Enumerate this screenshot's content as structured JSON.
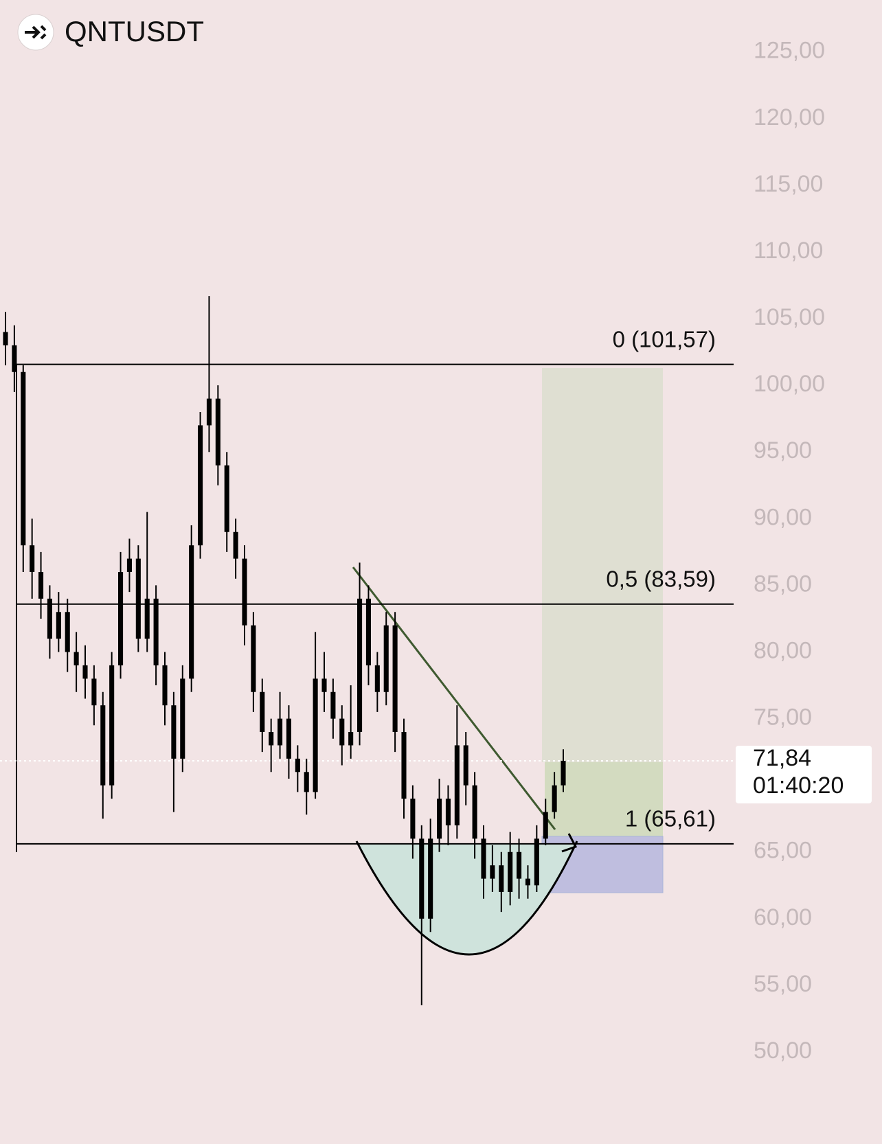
{
  "chart_data": {
    "type": "candlestick",
    "title": "QNTUSDT",
    "color": "#000000",
    "open": [
      104,
      103,
      101,
      88,
      86,
      84,
      81,
      83,
      80,
      79,
      78,
      76,
      70,
      79,
      86,
      87,
      81,
      84,
      79,
      76,
      72,
      78,
      88,
      97,
      99,
      94,
      89,
      87,
      82,
      77,
      74,
      73,
      75,
      72,
      71,
      69.5,
      78,
      77,
      75,
      73,
      74,
      84,
      79,
      77,
      82,
      74,
      69,
      66,
      60,
      66,
      69,
      67,
      73,
      70,
      66,
      63,
      64,
      62,
      65,
      63,
      62.5,
      66,
      68,
      70
    ],
    "high": [
      105.5,
      104.5,
      101.5,
      90,
      87.5,
      85,
      84.5,
      84,
      81.5,
      80.5,
      79,
      77,
      80,
      87.5,
      88.5,
      88,
      90.5,
      85,
      80,
      77,
      79,
      89.5,
      98,
      106.7,
      100,
      95,
      90,
      88,
      83,
      78,
      75,
      77,
      76,
      73,
      72,
      81.5,
      80,
      78,
      76,
      77.5,
      86.7,
      85,
      80,
      83,
      83,
      75,
      70,
      67,
      67.5,
      70.5,
      70,
      76,
      74,
      71,
      67,
      65.5,
      65,
      66.5,
      66,
      64,
      67,
      69,
      71,
      72.7
    ],
    "low": [
      101.5,
      99.5,
      86,
      84,
      82.5,
      79.5,
      80,
      78.5,
      77,
      76.5,
      74.5,
      67.5,
      69,
      78,
      84.5,
      80,
      80,
      77.5,
      74.5,
      68,
      71,
      77,
      87,
      95,
      92.5,
      87.5,
      85.5,
      80.5,
      75.5,
      72.5,
      71,
      72,
      70.5,
      69.5,
      67.8,
      69,
      75.5,
      73.5,
      71.5,
      72,
      73,
      77.5,
      75.5,
      76,
      72.5,
      67.5,
      64.5,
      53.5,
      59,
      65,
      65.5,
      66,
      68.5,
      64.5,
      61.5,
      62,
      60.5,
      61,
      61.5,
      61.5,
      62,
      65.5,
      67.5,
      69.5
    ],
    "close": [
      103,
      101,
      88,
      86,
      84,
      81,
      83,
      80,
      79,
      78,
      76,
      70,
      79,
      86,
      87,
      81,
      84,
      79,
      76,
      72,
      78,
      88,
      97,
      99,
      94,
      89,
      87,
      82,
      77,
      74,
      73,
      75,
      72,
      71,
      69.5,
      78,
      77,
      75,
      73,
      74,
      84,
      79,
      77,
      82,
      74,
      69,
      66,
      60,
      66,
      69,
      67,
      73,
      70,
      66,
      63,
      64,
      62,
      65,
      63,
      62.5,
      66,
      68,
      70,
      71.84
    ],
    "ylim": [
      43.1,
      128.9
    ],
    "yticks": [
      {
        "value": 50,
        "label": "50,00"
      },
      {
        "value": 55,
        "label": "55,00"
      },
      {
        "value": 60,
        "label": "60,00"
      },
      {
        "value": 65,
        "label": "65,00"
      },
      {
        "value": 70,
        "label": "70,00"
      },
      {
        "value": 75,
        "label": "75,00"
      },
      {
        "value": 80,
        "label": "80,00"
      },
      {
        "value": 85,
        "label": "85,00"
      },
      {
        "value": 90,
        "label": "90,00"
      },
      {
        "value": 95,
        "label": "95,00"
      },
      {
        "value": 100,
        "label": "100,00"
      },
      {
        "value": 105,
        "label": "105,00"
      },
      {
        "value": 110,
        "label": "110,00"
      },
      {
        "value": 115,
        "label": "115,00"
      },
      {
        "value": 120,
        "label": "120,00"
      },
      {
        "value": 125,
        "label": "125,00"
      }
    ],
    "fib_levels": [
      {
        "value": 101.57,
        "label": "0 (101,57)"
      },
      {
        "value": 83.59,
        "label": "0,5 (83,59)"
      },
      {
        "value": 65.61,
        "label": "1 (65,61)"
      }
    ],
    "last_price": {
      "value": 71.84,
      "label": "71,84"
    },
    "countdown": "01:40:20"
  }
}
